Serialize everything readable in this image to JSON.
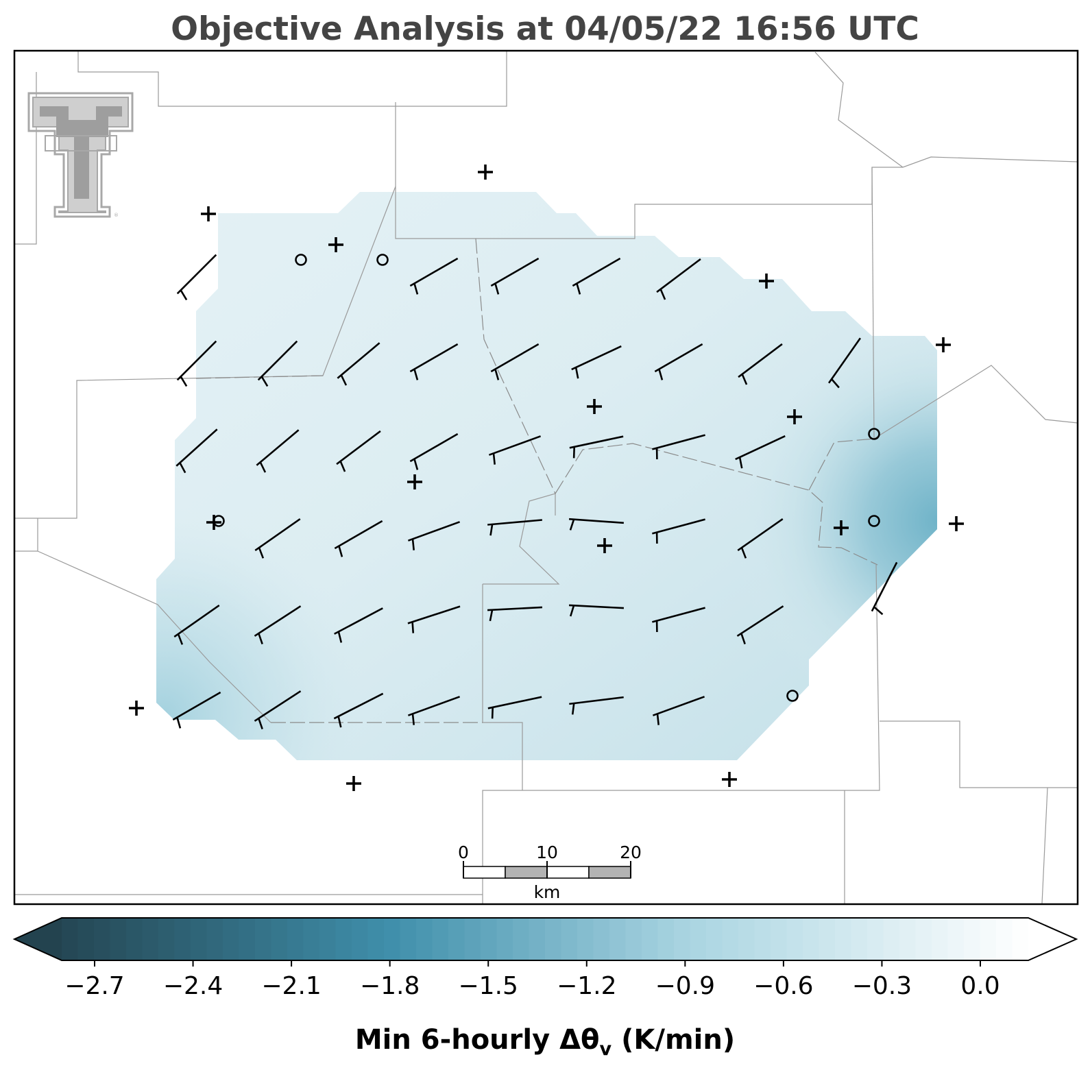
{
  "title": "Objective Analysis at 04/05/22 16:56 UTC",
  "colorbar": {
    "label_main": "Min 6-hourly Δθ",
    "label_sub": "v",
    "label_unit": " (K/min)",
    "ticks": [
      "−2.7",
      "−2.4",
      "−2.1",
      "−1.8",
      "−1.5",
      "−1.2",
      "−0.9",
      "−0.6",
      "−0.3",
      "0.0"
    ],
    "tick_values": [
      -2.7,
      -2.4,
      -2.1,
      -1.8,
      -1.5,
      -1.2,
      -0.9,
      -0.6,
      -0.3,
      0.0
    ],
    "vmin": -2.85,
    "vmax": 0.15,
    "extend": "both"
  },
  "scale_bar": {
    "labels": [
      "0",
      "10",
      "20"
    ],
    "unit": "km"
  },
  "colors": {
    "title": "#444444",
    "cmap_dark": "#23434f",
    "cmap_mid": "#3f8fab",
    "cmap_light": "#a9d4e1",
    "cmap_white": "#ffffff",
    "logo": "#a8a8a8"
  },
  "logo": {
    "icon": "texas-tech-double-t-logo"
  },
  "chart_data": {
    "type": "heatmap",
    "title": "Objective Analysis at 04/05/22 16:56 UTC",
    "field": "Min 6-hourly Δθv (K/min)",
    "field_value_range": [
      -1.6,
      -0.2
    ],
    "typical_interior_value": -0.4,
    "minimum_region": "eastern edge",
    "overlay": "wind barbs (10 kt barbs, direction mostly southwest to westerly)",
    "stations_plus_count": 17,
    "stations_calm_count": 6,
    "colorbar_ticks": [
      -2.7,
      -2.4,
      -2.1,
      -1.8,
      -1.5,
      -1.2,
      -0.9,
      -0.6,
      -0.3,
      0.0
    ],
    "scale_bar_km": [
      0,
      10,
      20
    ]
  }
}
